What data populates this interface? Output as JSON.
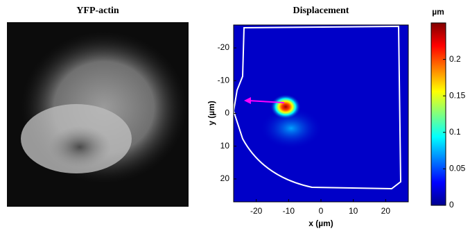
{
  "chart_data": [
    {
      "type": "image",
      "title": "YFP-actin"
    },
    {
      "type": "heatmap",
      "title": "Displacement",
      "xlabel": "x (µm)",
      "ylabel": "y (µm)",
      "xlim": [
        -27,
        27
      ],
      "ylim": [
        -27,
        27
      ],
      "y_reversed": true,
      "xticks": [
        -20,
        -10,
        0,
        10,
        20
      ],
      "yticks": [
        -20,
        -10,
        0,
        10,
        20
      ],
      "colorbar": {
        "label": "µm",
        "lim": [
          0,
          0.25
        ],
        "ticks": [
          0,
          0.05,
          0.1,
          0.15,
          0.2
        ]
      }
    }
  ]
}
